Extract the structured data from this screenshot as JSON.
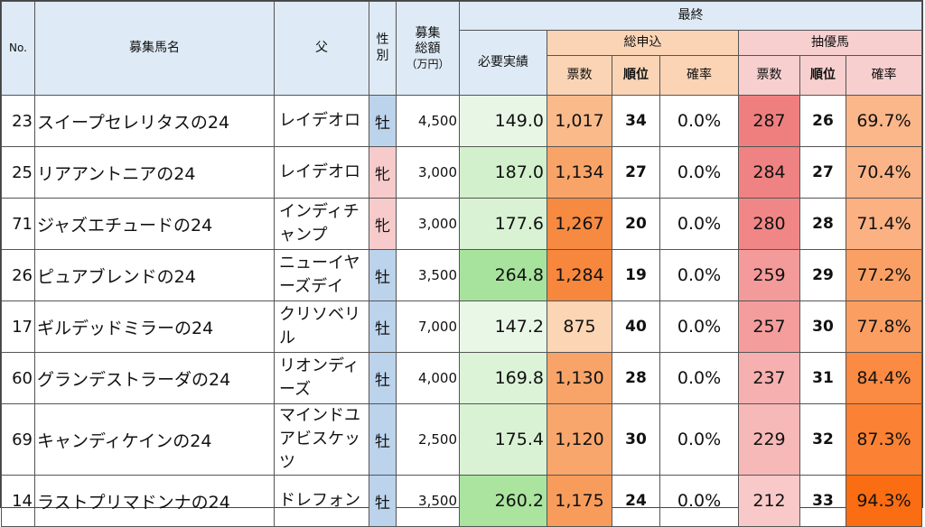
{
  "headers": {
    "no": "No.",
    "name": "募集馬名",
    "sire": "父",
    "sex": "性別",
    "total_line1": "募集",
    "total_line2": "総額",
    "total_unit": "（万円）",
    "final": "最終",
    "required": "必要実績",
    "applications": "総申込",
    "lottery": "抽優馬",
    "votes": "票数",
    "rank": "順位",
    "probability": "確率"
  },
  "rows": [
    {
      "no": "23",
      "name": "スイープセレリタスの24",
      "sire": "レイデオロ",
      "sex": "牡",
      "total": "4,500",
      "required": "149.0",
      "app_votes": "1,017",
      "app_rank": "34",
      "app_pct": "0.0%",
      "lot_votes": "287",
      "lot_rank": "26",
      "lot_pct": "69.7%"
    },
    {
      "no": "25",
      "name": "リアアントニアの24",
      "sire": "レイデオロ",
      "sex": "牝",
      "total": "3,000",
      "required": "187.0",
      "app_votes": "1,134",
      "app_rank": "27",
      "app_pct": "0.0%",
      "lot_votes": "284",
      "lot_rank": "27",
      "lot_pct": "70.4%"
    },
    {
      "no": "71",
      "name": "ジャズエチュードの24",
      "sire": "インディチャンプ",
      "sex": "牝",
      "total": "3,000",
      "required": "177.6",
      "app_votes": "1,267",
      "app_rank": "20",
      "app_pct": "0.0%",
      "lot_votes": "280",
      "lot_rank": "28",
      "lot_pct": "71.4%"
    },
    {
      "no": "26",
      "name": "ピュアブレンドの24",
      "sire": "ニューイヤーズデイ",
      "sex": "牡",
      "total": "3,500",
      "required": "264.8",
      "app_votes": "1,284",
      "app_rank": "19",
      "app_pct": "0.0%",
      "lot_votes": "259",
      "lot_rank": "29",
      "lot_pct": "77.2%"
    },
    {
      "no": "17",
      "name": "ギルデッドミラーの24",
      "sire": "クリソベリル",
      "sex": "牡",
      "total": "7,000",
      "required": "147.2",
      "app_votes": "875",
      "app_rank": "40",
      "app_pct": "0.0%",
      "lot_votes": "257",
      "lot_rank": "30",
      "lot_pct": "77.8%"
    },
    {
      "no": "60",
      "name": "グランデストラーダの24",
      "sire": "リオンディーズ",
      "sex": "牡",
      "total": "4,000",
      "required": "169.8",
      "app_votes": "1,130",
      "app_rank": "28",
      "app_pct": "0.0%",
      "lot_votes": "237",
      "lot_rank": "31",
      "lot_pct": "84.4%"
    },
    {
      "no": "69",
      "name": "キャンディケインの24",
      "sire": "マインドユアビスケッツ",
      "sex": "牡",
      "total": "2,500",
      "required": "175.4",
      "app_votes": "1,120",
      "app_rank": "30",
      "app_pct": "0.0%",
      "lot_votes": "229",
      "lot_rank": "32",
      "lot_pct": "87.3%"
    },
    {
      "no": "14",
      "name": "ラストプリマドンナの24",
      "sire": "ドレフォン",
      "sex": "牡",
      "total": "3,500",
      "required": "260.2",
      "app_votes": "1,175",
      "app_rank": "24",
      "app_pct": "0.0%",
      "lot_votes": "212",
      "lot_rank": "33",
      "lot_pct": "94.3%"
    }
  ],
  "colors": {
    "header_bg": "#deeaf5",
    "male_bg": "#bcd3ec",
    "female_bg": "#f7cbcb",
    "required_scale": [
      "#e9f7e6",
      "#a7e39c"
    ],
    "app_votes_scale": [
      "#fcd5b4",
      "#f6873c"
    ],
    "lot_votes_scale": [
      "#f9c9c9",
      "#ef7f7f"
    ],
    "lot_pct_scale": [
      "#fbb68a",
      "#fb6d12"
    ]
  }
}
